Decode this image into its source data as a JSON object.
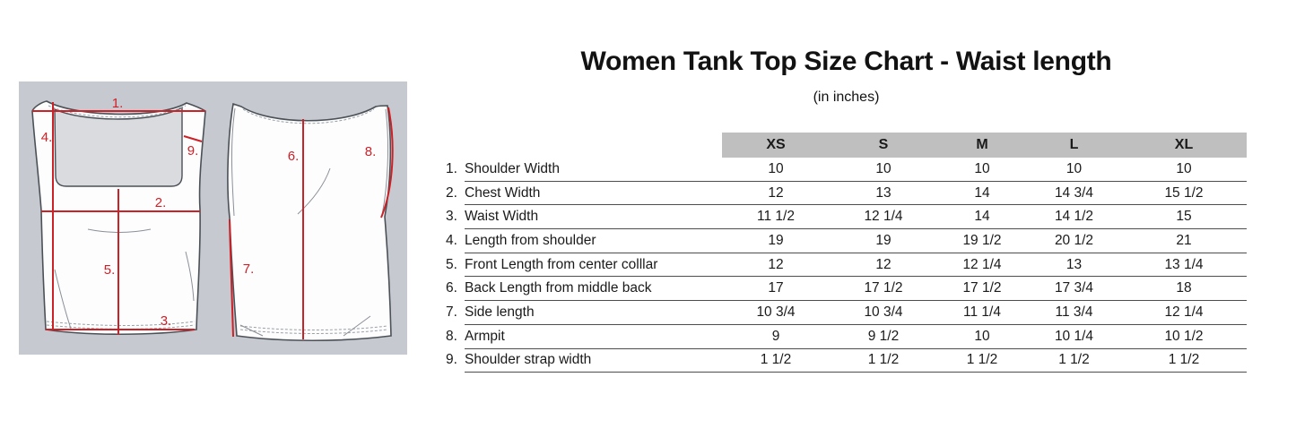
{
  "chart_data": {
    "type": "table",
    "title": "Women Tank Top Size Chart - Waist length",
    "subtitle": "(in inches)",
    "columns": [
      "XS",
      "S",
      "M",
      "L",
      "XL"
    ],
    "rows": [
      {
        "num": "1.",
        "label": "Shoulder Width",
        "values": [
          "10",
          "10",
          "10",
          "10",
          "10"
        ]
      },
      {
        "num": "2.",
        "label": "Chest Width",
        "values": [
          "12",
          "13",
          "14",
          "14 3/4",
          "15 1/2"
        ]
      },
      {
        "num": "3.",
        "label": "Waist Width",
        "values": [
          "11 1/2",
          "12 1/4",
          "14",
          "14 1/2",
          "15"
        ]
      },
      {
        "num": "4.",
        "label": "Length from shoulder",
        "values": [
          "19",
          "19",
          "19 1/2",
          "20 1/2",
          "21"
        ]
      },
      {
        "num": "5.",
        "label": "Front Length from center colllar",
        "values": [
          "12",
          "12",
          "12 1/4",
          "13",
          "13 1/4"
        ]
      },
      {
        "num": "6.",
        "label": "Back Length from middle back",
        "values": [
          "17",
          "17 1/2",
          "17 1/2",
          "17 3/4",
          "18"
        ]
      },
      {
        "num": "7.",
        "label": "Side length",
        "values": [
          "10 3/4",
          "10 3/4",
          "11 1/4",
          "11 3/4",
          "12 1/4"
        ]
      },
      {
        "num": "8.",
        "label": "Armpit",
        "values": [
          "9",
          "9 1/2",
          "10",
          "10 1/4",
          "10 1/2"
        ]
      },
      {
        "num": "9.",
        "label": "Shoulder strap width",
        "values": [
          "1 1/2",
          "1 1/2",
          "1 1/2",
          "1 1/2",
          "1 1/2"
        ]
      }
    ]
  },
  "diagram": {
    "measure_labels": {
      "m1": "1.",
      "m2": "2.",
      "m3": "3.",
      "m4": "4.",
      "m5": "5.",
      "m6": "6.",
      "m7": "7.",
      "m8": "8.",
      "m9": "9."
    }
  },
  "colors": {
    "measurement_line": "#cc2127",
    "panel_background": "#c6cad0",
    "table_header_background": "#bfbfbf",
    "garment_outline": "#4b5157"
  }
}
